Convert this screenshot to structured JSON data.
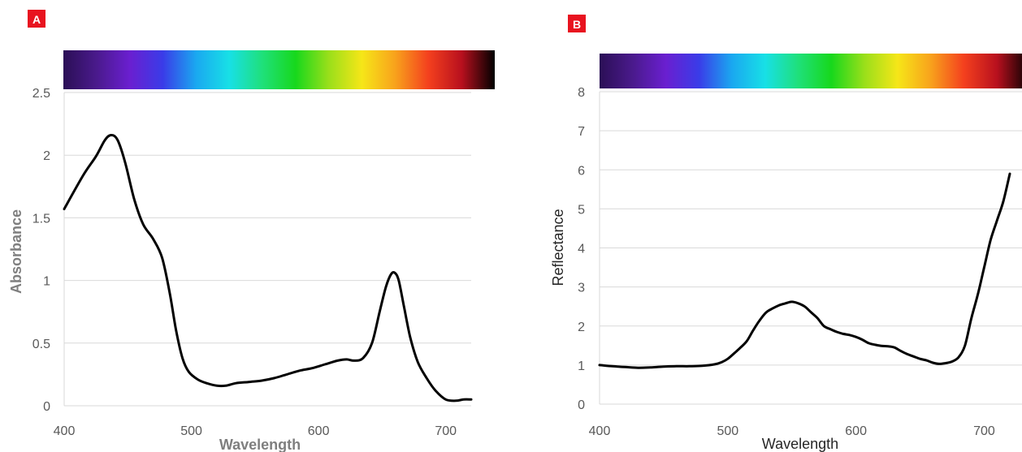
{
  "colors": {
    "badge": "#e8131f",
    "line": "#000000",
    "grid": "#d9d9d9",
    "tick_text": "#595959",
    "axis_title_a": "#7f7f7f",
    "axis_title_b": "#262626",
    "spectrum": [
      "#2b0f56",
      "#4a1a8c",
      "#6a1fd0",
      "#3a3ce8",
      "#1aa8f0",
      "#18e0e6",
      "#1fe07a",
      "#17d81c",
      "#9adf1a",
      "#f6e618",
      "#f8a21c",
      "#f4401e",
      "#b8101e",
      "#000000"
    ]
  },
  "chart_data": [
    {
      "type": "line",
      "panel_label": "A",
      "xlabel": "Wavelength",
      "ylabel": "Absorbance",
      "xlim": [
        400,
        720
      ],
      "ylim": [
        0,
        2.5
      ],
      "x_ticks": [
        "400",
        "500",
        "600",
        "700"
      ],
      "y_ticks": [
        "0",
        "0.5",
        "1",
        "1.5",
        "2",
        "2.5"
      ],
      "grid": "horizontal",
      "spectrum_bar": true,
      "series": [
        {
          "x": [
            400,
            415,
            425,
            432,
            437,
            442,
            448,
            455,
            462,
            470,
            477,
            483,
            488,
            493,
            498,
            505,
            512,
            520,
            527,
            535,
            545,
            555,
            565,
            575,
            585,
            595,
            605,
            615,
            622,
            628,
            635,
            642,
            648,
            653,
            657,
            660,
            663,
            667,
            672,
            678,
            685,
            692,
            700,
            708,
            714,
            720
          ],
          "y": [
            1.57,
            1.84,
            1.99,
            2.12,
            2.16,
            2.12,
            1.94,
            1.65,
            1.45,
            1.33,
            1.18,
            0.9,
            0.6,
            0.38,
            0.27,
            0.21,
            0.18,
            0.16,
            0.16,
            0.18,
            0.19,
            0.2,
            0.22,
            0.25,
            0.28,
            0.3,
            0.33,
            0.36,
            0.37,
            0.36,
            0.38,
            0.5,
            0.75,
            0.95,
            1.05,
            1.06,
            1.0,
            0.8,
            0.55,
            0.35,
            0.22,
            0.12,
            0.05,
            0.04,
            0.05,
            0.05
          ]
        }
      ]
    },
    {
      "type": "line",
      "panel_label": "B",
      "xlabel": "Wavelength",
      "ylabel": "Reflectance",
      "xlim": [
        400,
        720
      ],
      "ylim": [
        0,
        8
      ],
      "x_ticks": [
        "400",
        "500",
        "600",
        "700"
      ],
      "y_ticks": [
        "0",
        "1",
        "2",
        "3",
        "4",
        "5",
        "6",
        "7",
        "8"
      ],
      "grid": "horizontal",
      "spectrum_bar": true,
      "series": [
        {
          "x": [
            400,
            410,
            420,
            430,
            440,
            450,
            460,
            470,
            480,
            490,
            495,
            500,
            505,
            510,
            515,
            520,
            525,
            530,
            535,
            540,
            545,
            550,
            555,
            560,
            565,
            570,
            575,
            580,
            585,
            590,
            595,
            600,
            605,
            610,
            615,
            620,
            625,
            630,
            635,
            640,
            645,
            650,
            655,
            660,
            665,
            670,
            675,
            680,
            685,
            690,
            695,
            700,
            705,
            710,
            715,
            720
          ],
          "y": [
            1.0,
            0.97,
            0.95,
            0.93,
            0.94,
            0.96,
            0.97,
            0.97,
            0.98,
            1.02,
            1.07,
            1.16,
            1.3,
            1.45,
            1.62,
            1.9,
            2.15,
            2.35,
            2.45,
            2.53,
            2.58,
            2.62,
            2.58,
            2.5,
            2.35,
            2.2,
            2.0,
            1.92,
            1.85,
            1.8,
            1.77,
            1.72,
            1.65,
            1.56,
            1.52,
            1.49,
            1.48,
            1.45,
            1.36,
            1.28,
            1.22,
            1.16,
            1.12,
            1.06,
            1.03,
            1.05,
            1.09,
            1.2,
            1.5,
            2.2,
            2.8,
            3.5,
            4.2,
            4.7,
            5.2,
            5.9
          ]
        }
      ]
    }
  ]
}
